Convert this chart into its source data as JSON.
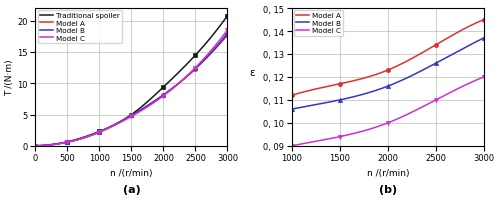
{
  "left": {
    "x": [
      0,
      500,
      1000,
      1500,
      2000,
      2500,
      3000
    ],
    "traditional": [
      0,
      0.65,
      2.3,
      5.0,
      9.4,
      14.5,
      20.8
    ],
    "modelA": [
      0,
      0.6,
      2.2,
      4.85,
      8.1,
      12.3,
      17.7
    ],
    "modelB": [
      0,
      0.6,
      2.2,
      4.85,
      8.15,
      12.35,
      18.0
    ],
    "modelC": [
      0,
      0.58,
      2.2,
      4.7,
      8.0,
      12.5,
      18.5
    ],
    "xlabel": "n /(r/min)",
    "ylabel": "T /(N·m)",
    "xlim": [
      0,
      3000
    ],
    "ylim": [
      0,
      22
    ],
    "xticks": [
      0,
      500,
      1000,
      1500,
      2000,
      2500,
      3000
    ],
    "yticks": [
      0,
      5,
      10,
      15,
      20
    ],
    "label_a": "(a)"
  },
  "right": {
    "x": [
      1000,
      1500,
      2000,
      2500,
      3000
    ],
    "modelA": [
      0.112,
      0.117,
      0.123,
      0.134,
      0.145
    ],
    "modelB": [
      0.106,
      0.11,
      0.116,
      0.126,
      0.137
    ],
    "modelC": [
      0.09,
      0.094,
      0.1,
      0.11,
      0.12
    ],
    "xlabel": "n /(r/min)",
    "ylabel": "ε",
    "xlim": [
      1000,
      3000
    ],
    "ylim": [
      0.09,
      0.15
    ],
    "xticks": [
      1000,
      1500,
      2000,
      2500,
      3000
    ],
    "ytick_values": [
      0.09,
      0.1,
      0.11,
      0.12,
      0.13,
      0.14,
      0.15
    ],
    "ytick_labels": [
      "0, 09",
      "0, 10",
      "0, 11",
      "0, 12",
      "0, 13",
      "0, 14",
      "0, 15"
    ],
    "label_b": "(b)"
  },
  "colors": {
    "traditional": "#1a1a1a",
    "modelA": "#e03030",
    "modelB": "#3535c0",
    "modelC": "#d030d0"
  },
  "smooth_points": 300
}
